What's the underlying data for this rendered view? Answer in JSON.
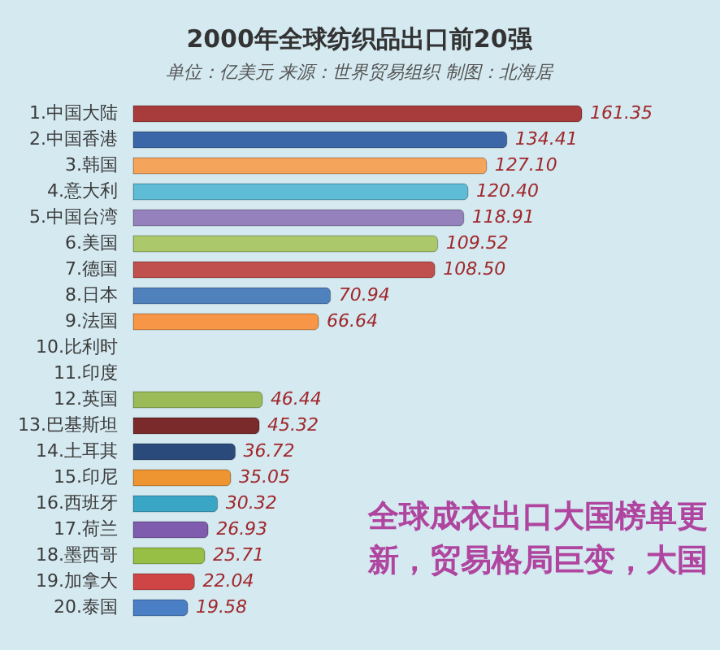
{
  "chart_data": {
    "type": "bar",
    "orientation": "horizontal",
    "title": "2000年全球纺织品出口前20强",
    "subtitle": "单位：亿美元 来源：世界贸易组织 制图：北海居",
    "categories": [
      "1.中国大陆",
      "2.中国香港",
      "3.韩国",
      "4.意大利",
      "5.中国台湾",
      "6.美国",
      "7.德国",
      "8.日本",
      "9.法国",
      "10.比利时",
      "11.印度",
      "12.英国",
      "13.巴基斯坦",
      "14.土耳其",
      "15.印尼",
      "16.西班牙",
      "17.荷兰",
      "18.墨西哥",
      "19.加拿大",
      "20.泰国"
    ],
    "values": [
      161.35,
      134.41,
      127.1,
      120.4,
      118.91,
      109.52,
      108.5,
      70.94,
      66.64,
      null,
      null,
      46.44,
      45.32,
      36.72,
      35.05,
      30.32,
      26.93,
      25.71,
      22.04,
      19.58
    ],
    "value_labels": [
      "161.35",
      "134.41",
      "127.10",
      "120.40",
      "118.91",
      "109.52",
      "108.50",
      "70.94",
      "66.64",
      null,
      null,
      "46.44",
      "45.32",
      "36.72",
      "35.05",
      "30.32",
      "26.93",
      "25.71",
      "22.04",
      "19.58"
    ],
    "colors": [
      "#a83b3b",
      "#3b67a8",
      "#f5a45c",
      "#5fbcd6",
      "#9582bd",
      "#abc96a",
      "#c0504d",
      "#4f81bd",
      "#f79646",
      null,
      null,
      "#9bbb59",
      "#7a2a2a",
      "#2b4a7c",
      "#ee9532",
      "#3aa6c6",
      "#7f5cad",
      "#98bf45",
      "#cf4545",
      "#4a7fc6"
    ],
    "annotations": [
      "全球成衣出口大国榜单更新，贸易格局巨变，大国"
    ]
  }
}
